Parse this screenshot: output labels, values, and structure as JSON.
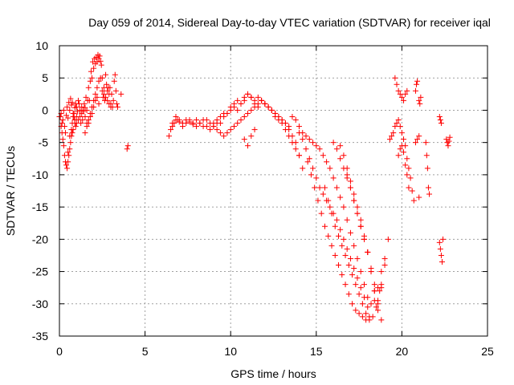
{
  "chart_data": {
    "type": "scatter",
    "title": "Day 059 of 2014, Sidereal Day-to-day VTEC variation (SDTVAR) for receiver iqal",
    "xlabel": "GPS time / hours",
    "ylabel": "SDTVAR / TECUs",
    "xlim": [
      0,
      25
    ],
    "ylim": [
      -35,
      10
    ],
    "x_ticks": [
      0,
      5,
      10,
      15,
      20,
      25
    ],
    "y_ticks": [
      10,
      5,
      0,
      -5,
      -10,
      -15,
      -20,
      -25,
      -30,
      -35
    ],
    "grid": true,
    "marker": "+",
    "color": "#ff0000",
    "series": [
      {
        "name": "SDTVAR",
        "x": [
          0.0,
          0.1,
          0.15,
          0.2,
          0.25,
          0.3,
          0.35,
          0.4,
          0.45,
          0.5,
          0.55,
          0.6,
          0.65,
          0.7,
          0.75,
          0.8,
          0.85,
          0.9,
          0.95,
          1.0,
          1.05,
          1.1,
          1.15,
          1.2,
          1.25,
          1.3,
          1.35,
          1.4,
          1.45,
          1.5,
          1.55,
          1.6,
          1.65,
          1.7,
          1.75,
          1.8,
          1.85,
          1.9,
          1.95,
          2.0,
          2.05,
          2.1,
          2.15,
          2.2,
          2.25,
          2.3,
          2.35,
          2.4,
          2.45,
          2.5,
          2.55,
          2.6,
          2.65,
          2.7,
          2.75,
          2.8,
          2.85,
          2.9,
          2.95,
          3.0,
          3.05,
          3.1,
          3.15,
          3.2,
          3.25,
          3.3,
          3.35,
          3.4,
          3.6,
          3.95,
          4.0,
          0.05,
          0.1,
          0.15,
          0.2,
          0.25,
          0.3,
          0.35,
          0.5,
          0.6,
          0.7,
          0.75,
          0.8,
          0.85,
          0.9,
          0.95,
          1.0,
          1.1,
          1.2,
          1.3,
          1.4,
          1.5,
          1.6,
          1.7,
          1.8,
          1.9,
          2.0,
          2.1,
          2.2,
          2.3,
          2.4,
          2.5,
          2.6,
          2.7,
          2.8,
          2.9,
          3.0,
          0.4,
          0.45,
          0.5,
          0.55,
          0.6,
          0.65,
          0.7,
          0.75,
          0.8,
          0.9,
          1.0,
          1.5,
          1.6,
          1.7,
          1.8,
          1.9,
          2.0,
          2.1,
          2.2,
          2.3,
          6.4,
          6.5,
          6.6,
          6.7,
          6.8,
          6.9,
          7.0,
          7.2,
          7.4,
          7.6,
          7.8,
          8.0,
          8.2,
          8.4,
          8.6,
          8.8,
          9.0,
          9.2,
          9.4,
          9.6,
          9.8,
          10.0,
          10.2,
          10.4,
          10.6,
          10.8,
          11.0,
          11.2,
          11.4,
          11.6,
          11.8,
          12.0,
          12.2,
          12.4,
          12.6,
          12.8,
          13.0,
          13.2,
          13.4,
          13.6,
          13.8,
          14.0,
          14.2,
          6.6,
          6.8,
          7.0,
          7.2,
          7.4,
          7.6,
          7.8,
          8.0,
          8.2,
          8.4,
          8.6,
          8.8,
          9.0,
          9.2,
          9.4,
          9.6,
          9.8,
          10.0,
          10.2,
          10.4,
          10.6,
          10.8,
          11.0,
          11.2,
          11.4,
          11.6,
          11.8,
          12.0,
          12.2,
          12.4,
          12.6,
          12.8,
          13.0,
          13.2,
          13.4,
          13.6,
          13.8,
          14.0,
          9.0,
          9.2,
          9.4,
          9.6,
          9.8,
          10.0,
          10.2,
          10.4,
          10.6,
          10.8,
          11.0,
          11.2,
          11.4,
          11.6,
          11.8,
          12.0,
          12.2,
          12.4,
          12.6,
          12.8,
          13.0,
          13.2,
          13.4,
          10.8,
          11.0,
          11.2,
          11.4,
          13.6,
          13.8,
          14.0,
          14.2,
          14.4,
          14.6,
          14.8,
          15.0,
          15.2,
          15.4,
          15.6,
          15.8,
          16.0,
          16.2,
          16.4,
          16.6,
          16.8,
          17.0,
          17.2,
          17.4,
          17.6,
          17.8,
          18.0,
          18.2,
          18.4,
          18.6,
          18.8,
          14.0,
          14.2,
          14.4,
          14.6,
          14.8,
          15.0,
          15.2,
          15.4,
          15.6,
          15.8,
          16.0,
          16.2,
          16.4,
          16.6,
          16.8,
          17.0,
          17.2,
          17.4,
          17.6,
          17.8,
          18.0,
          14.5,
          14.7,
          14.9,
          15.1,
          15.3,
          15.5,
          15.7,
          15.9,
          16.1,
          16.3,
          16.5,
          16.7,
          16.9,
          17.1,
          17.3,
          17.5,
          17.7,
          17.9,
          18.1,
          15.5,
          15.7,
          15.9,
          16.1,
          16.3,
          16.5,
          16.7,
          16.9,
          17.1,
          17.3,
          17.5,
          17.7,
          17.9,
          18.1,
          18.3,
          18.5,
          18.7,
          16.0,
          16.2,
          16.4,
          16.6,
          16.8,
          17.0,
          17.2,
          17.4,
          17.6,
          17.8,
          18.0,
          18.2,
          18.4,
          18.6,
          18.8,
          16.8,
          17.0,
          17.2,
          17.4,
          17.6,
          17.8,
          18.0,
          18.2,
          18.4,
          18.6,
          18.8,
          19.0,
          16.4,
          16.6,
          16.8,
          17.0,
          17.2,
          17.4,
          17.6,
          17.8,
          18.0,
          18.2,
          18.4,
          18.6,
          18.8,
          19.0,
          19.2,
          19.3,
          19.4,
          19.5,
          19.6,
          19.7,
          19.8,
          19.9,
          20.0,
          20.1,
          20.2,
          20.3,
          20.4,
          20.5,
          20.6,
          20.7,
          20.8,
          20.9,
          21.0,
          19.6,
          19.7,
          19.8,
          19.9,
          20.0,
          20.1,
          20.2,
          20.3,
          19.8,
          19.9,
          20.0,
          20.1,
          20.2,
          20.3,
          20.4,
          20.8,
          20.85,
          20.9,
          21.0,
          21.05,
          21.1,
          21.4,
          21.45,
          21.5,
          21.55,
          21.6,
          22.2,
          22.25,
          22.3,
          22.35,
          22.4,
          22.2,
          22.25,
          22.3,
          22.6,
          22.65,
          22.7,
          22.75,
          22.8,
          21.0
        ],
        "y": [
          -1.0,
          -0.5,
          -2.0,
          -1.5,
          0.0,
          -2.5,
          -3.5,
          -0.8,
          0.5,
          -1.2,
          1.2,
          0.0,
          1.8,
          0.8,
          1.2,
          -0.5,
          -1.0,
          0.4,
          1.0,
          0.5,
          -0.2,
          1.5,
          1.0,
          0.0,
          -2.0,
          0.5,
          -1.5,
          -0.2,
          1.0,
          0.4,
          2.0,
          0.0,
          1.5,
          3.5,
          1.5,
          4.5,
          6.0,
          5.0,
          7.5,
          6.5,
          8.0,
          7.2,
          8.2,
          7.5,
          8.6,
          8.0,
          8.4,
          7.6,
          7.0,
          5.0,
          2.0,
          3.5,
          1.5,
          5.5,
          4.0,
          3.0,
          3.5,
          2.5,
          3.5,
          1.0,
          2.5,
          0.5,
          1.5,
          4.5,
          5.5,
          3.0,
          1.0,
          0.5,
          2.5,
          -6.0,
          -5.5,
          -1.0,
          -2.5,
          -3.5,
          -4.5,
          -5.5,
          -7.0,
          -8.0,
          -6.5,
          -4.0,
          -3.0,
          -2.0,
          -1.0,
          -0.5,
          -1.5,
          -2.5,
          -2.0,
          -1.5,
          -1.0,
          -0.5,
          0.0,
          -1.0,
          -2.0,
          -1.5,
          -0.5,
          0.5,
          1.5,
          2.5,
          3.5,
          4.5,
          5.0,
          3.0,
          2.5,
          2.0,
          1.5,
          1.0,
          0.5,
          -8.5,
          -9.0,
          -8.0,
          -7.0,
          -6.0,
          -5.0,
          -4.0,
          -3.5,
          -3.0,
          -2.0,
          -1.0,
          -3.5,
          -2.5,
          -2.0,
          -1.0,
          -0.5,
          0.5,
          1.5,
          2.0,
          1.0,
          -4.0,
          -3.0,
          -2.5,
          -2.0,
          -1.5,
          -1.5,
          -1.8,
          -2.0,
          -1.5,
          -1.8,
          -2.2,
          -1.5,
          -2.0,
          -2.5,
          -1.5,
          -2.0,
          -2.5,
          -2.0,
          -1.0,
          -0.5,
          -0.5,
          0.5,
          1.0,
          1.5,
          1.0,
          1.5,
          2.5,
          2.0,
          1.5,
          2.0,
          1.5,
          1.0,
          0.5,
          0.0,
          -0.5,
          -1.0,
          -1.5,
          -2.0,
          -3.0,
          -4.0,
          -5.0,
          -7.0,
          -9.0,
          -2.0,
          -1.0,
          -1.5,
          -2.5,
          -2.0,
          -1.5,
          -2.0,
          -2.5,
          -2.0,
          -1.5,
          -2.5,
          -3.0,
          -2.0,
          -1.5,
          -2.0,
          -1.0,
          -0.5,
          0.0,
          0.5,
          0.0,
          1.0,
          2.0,
          2.5,
          2.0,
          1.0,
          0.5,
          1.5,
          1.0,
          0.5,
          0.0,
          -1.0,
          -1.5,
          -2.0,
          -3.0,
          -4.0,
          -5.0,
          -6.0,
          -7.0,
          -2.5,
          -3.0,
          -3.5,
          -4.0,
          -3.5,
          -3.0,
          -2.5,
          -2.0,
          -1.5,
          -1.0,
          -0.5,
          0.0,
          0.5,
          1.0,
          1.5,
          1.0,
          0.5,
          0.0,
          -0.5,
          -1.0,
          -1.5,
          -2.0,
          -2.5,
          -4.5,
          -5.5,
          -4.0,
          -3.0,
          -1.0,
          -1.5,
          -2.5,
          -3.5,
          -4.0,
          -4.5,
          -5.0,
          -5.5,
          -6.0,
          -7.0,
          -8.0,
          -9.0,
          -10.5,
          -12.0,
          -13.5,
          -15.0,
          -17.0,
          -19.0,
          -21.0,
          -23.0,
          -25.0,
          -27.0,
          -29.0,
          -30.0,
          -29.5,
          -27.5,
          -25.0,
          -3.5,
          -4.5,
          -6.0,
          -7.5,
          -9.0,
          -10.5,
          -12.0,
          -13.0,
          -14.0,
          -15.0,
          -16.0,
          -17.0,
          -18.5,
          -20.0,
          -21.5,
          -23.0,
          -24.5,
          -26.0,
          -27.5,
          -29.0,
          -30.5,
          -8.0,
          -10.0,
          -12.0,
          -14.0,
          -16.0,
          -18.0,
          -19.5,
          -21.0,
          -22.5,
          -24.0,
          -25.5,
          -27.0,
          -28.5,
          -30.0,
          -31.0,
          -31.5,
          -32.0,
          -32.5,
          -32.0,
          -12.0,
          -14.0,
          -16.0,
          -18.0,
          -19.5,
          -21.0,
          -22.5,
          -24.0,
          -25.5,
          -27.0,
          -28.5,
          -30.0,
          -31.5,
          -32.5,
          -32.0,
          -30.5,
          -28.0,
          -5.0,
          -6.0,
          -7.5,
          -9.0,
          -10.5,
          -12.0,
          -14.0,
          -16.0,
          -18.0,
          -20.0,
          -22.0,
          -25.0,
          -28.0,
          -31.0,
          -32.5,
          -10.0,
          -12.0,
          -14.0,
          -16.0,
          -18.0,
          -20.0,
          -22.0,
          -24.5,
          -27.0,
          -29.5,
          -27.5,
          -24.0,
          -5.5,
          -7.0,
          -9.0,
          -11.0,
          -13.0,
          -15.0,
          -17.0,
          -19.5,
          -22.0,
          -25.0,
          -28.0,
          -30.0,
          -27.0,
          -23.0,
          -20.0,
          -4.5,
          -4.0,
          -3.5,
          -2.5,
          -2.0,
          -1.5,
          -2.5,
          -3.5,
          -4.5,
          -5.5,
          -7.5,
          -9.0,
          -10.5,
          -12.5,
          -14.0,
          -5.0,
          -4.5,
          -4.0,
          5.0,
          4.0,
          3.0,
          2.5,
          2.0,
          1.5,
          2.5,
          3.0,
          -7.0,
          -6.0,
          -5.5,
          -6.5,
          -8.5,
          -10.0,
          -12.0,
          3.0,
          4.0,
          4.5,
          1.5,
          1.0,
          2.0,
          -5.0,
          -7.0,
          -9.0,
          -12.0,
          -13.0,
          -20.5,
          -21.5,
          -22.5,
          -23.5,
          -20.0,
          -1.0,
          -1.5,
          -2.0,
          -4.5,
          -5.0,
          -5.5,
          -4.8,
          -4.2,
          -13.5
        ]
      }
    ]
  }
}
